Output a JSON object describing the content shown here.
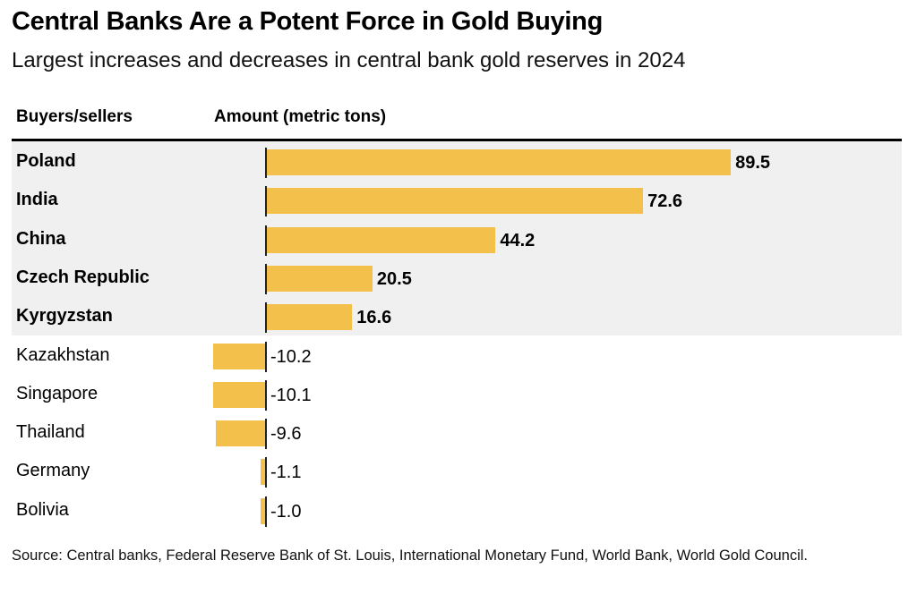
{
  "chart_data": {
    "type": "bar",
    "orientation": "horizontal",
    "title": "Central Banks Are a Potent Force in Gold Buying",
    "subtitle": "Largest increases and decreases in central bank gold reserves in 2024",
    "column_headers": [
      "Buyers/sellers",
      "Amount (metric tons)"
    ],
    "xlabel": "Amount (metric tons)",
    "ylabel": "Buyers/sellers",
    "categories": [
      "Poland",
      "India",
      "China",
      "Czech Republic",
      "Kyrgyzstan",
      "Kazakhstan",
      "Singapore",
      "Thailand",
      "Germany",
      "Bolivia"
    ],
    "values": [
      89.5,
      72.6,
      44.2,
      20.5,
      16.6,
      -10.2,
      -10.1,
      -9.6,
      -1.1,
      -1.0
    ],
    "value_labels": [
      "89.5",
      "72.6",
      "44.2",
      "20.5",
      "16.6",
      "-10.2",
      "-10.1",
      "-9.6",
      "-1.1",
      "-1.0"
    ],
    "highlighted": [
      true,
      true,
      true,
      true,
      true,
      false,
      false,
      false,
      false,
      false
    ],
    "xlim": [
      -10.2,
      89.5
    ],
    "grid": false,
    "legend": "none",
    "bar_color": "#f4c04c",
    "highlight_band_color": "#f0f0f0",
    "source": "Source: Central banks, Federal Reserve Bank of St. Louis, International Monetary Fund, World Bank, World Gold Council."
  }
}
